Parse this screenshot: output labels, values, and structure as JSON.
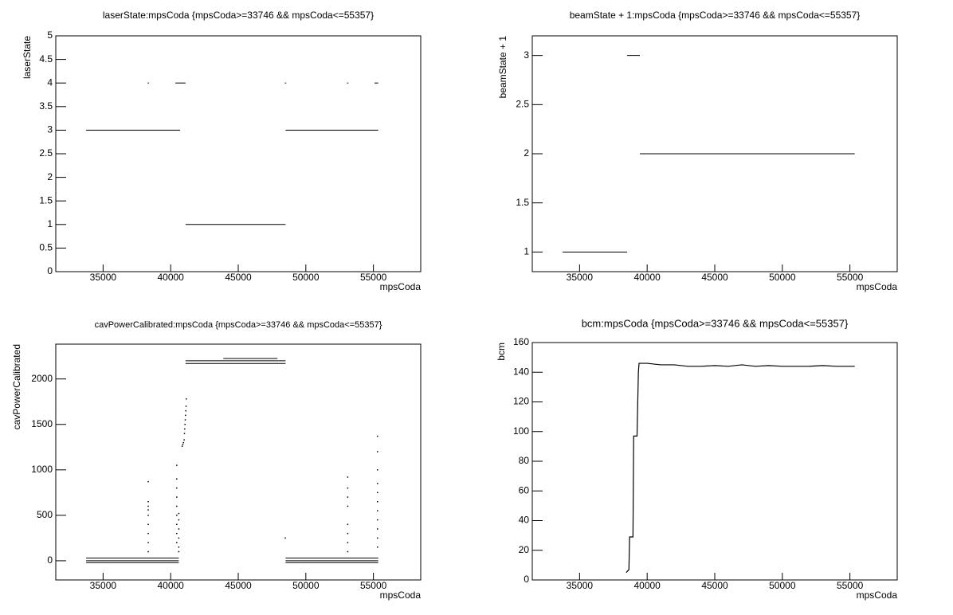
{
  "chart_data": [
    {
      "type": "scatter",
      "title": "laserState:mpsCoda {mpsCoda>=33746 && mpsCoda<=55357}",
      "x_label": "mpsCoda",
      "y_label": "laserState",
      "color": "#000000",
      "xlim": [
        31500,
        58500
      ],
      "xticks": [
        35000,
        40000,
        45000,
        50000,
        55000
      ],
      "ylim": [
        0,
        5
      ],
      "yticks": [
        0,
        0.5,
        1,
        1.5,
        2,
        2.5,
        3,
        3.5,
        4,
        4.5,
        5
      ],
      "segments": [
        {
          "x": [
            33746,
            40700
          ],
          "y": 3
        },
        {
          "x": [
            41100,
            48500
          ],
          "y": 1
        },
        {
          "x": [
            48500,
            55357
          ],
          "y": 3
        },
        {
          "x": [
            38300,
            38400
          ],
          "y": 4
        },
        {
          "x": [
            40350,
            41100
          ],
          "y": 4
        },
        {
          "x": [
            48450,
            48550
          ],
          "y": 4
        },
        {
          "x": [
            53050,
            53150
          ],
          "y": 4
        },
        {
          "x": [
            55080,
            55357
          ],
          "y": 4
        }
      ]
    },
    {
      "type": "scatter",
      "title": "beamState + 1:mpsCoda {mpsCoda>=33746 && mpsCoda<=55357}",
      "x_label": "mpsCoda",
      "y_label": "beamState + 1",
      "color": "#000000",
      "xlim": [
        31500,
        58500
      ],
      "xticks": [
        35000,
        40000,
        45000,
        50000,
        55000
      ],
      "ylim": [
        0.8,
        3.2
      ],
      "yticks": [
        1,
        1.5,
        2,
        2.5,
        3
      ],
      "segments": [
        {
          "x": [
            33746,
            38520
          ],
          "y": 1
        },
        {
          "x": [
            38520,
            39460
          ],
          "y": 3
        },
        {
          "x": [
            39460,
            55357
          ],
          "y": 2
        }
      ]
    },
    {
      "type": "scatter",
      "title": "cavPowerCalibrated:mpsCoda {mpsCoda>=33746 && mpsCoda<=55357}",
      "x_label": "mpsCoda",
      "y_label": "cavPowerCalibrated",
      "color": "#000000",
      "xlim": [
        31500,
        58500
      ],
      "xticks": [
        35000,
        40000,
        45000,
        50000,
        55000
      ],
      "ylim": [
        -211,
        2383
      ],
      "yticks": [
        0,
        500,
        1000,
        1500,
        2000
      ],
      "segments": [
        {
          "x": [
            33746,
            40600
          ],
          "y": 30
        },
        {
          "x": [
            33746,
            40600
          ],
          "y": 0
        },
        {
          "x": [
            33746,
            40600
          ],
          "y": -20
        },
        {
          "x": [
            41100,
            48500
          ],
          "y": 2200
        },
        {
          "x": [
            41100,
            48500
          ],
          "y": 2170
        },
        {
          "x": [
            43900,
            47900
          ],
          "y": 2225
        },
        {
          "x": [
            48500,
            55357
          ],
          "y": 30
        },
        {
          "x": [
            48500,
            55357
          ],
          "y": 0
        },
        {
          "x": [
            48500,
            55357
          ],
          "y": -20
        }
      ],
      "points": {
        "x": [
          38340,
          38340,
          38340,
          38340,
          38340,
          38340,
          38340,
          38340,
          38340,
          40450,
          40450,
          40450,
          40450,
          40450,
          40450,
          40450,
          40450,
          40450,
          40600,
          40600,
          40600,
          40600,
          40600,
          40600,
          40850,
          40900,
          40950,
          41000,
          41020,
          41040,
          41060,
          41080,
          41100,
          41120,
          41140,
          41160,
          48480,
          53100,
          53100,
          53100,
          53100,
          53100,
          53100,
          53100,
          53100,
          55300,
          55300,
          55300,
          55300,
          55300,
          55300,
          55300,
          55300,
          55300,
          55300,
          55300
        ],
        "y": [
          100,
          200,
          300,
          400,
          500,
          560,
          600,
          650,
          870,
          200,
          300,
          400,
          500,
          600,
          700,
          800,
          900,
          1050,
          100,
          150,
          250,
          350,
          450,
          520,
          1260,
          1280,
          1300,
          1330,
          1400,
          1450,
          1500,
          1550,
          1600,
          1650,
          1700,
          1780,
          250,
          100,
          200,
          300,
          400,
          600,
          700,
          800,
          920,
          150,
          250,
          350,
          450,
          550,
          650,
          750,
          850,
          1000,
          1200,
          1370
        ]
      }
    },
    {
      "type": "line",
      "title": "bcm:mpsCoda {mpsCoda>=33746 && mpsCoda<=55357}",
      "x_label": "mpsCoda",
      "y_label": "bcm",
      "color": "#000000",
      "xlim": [
        31500,
        58500
      ],
      "xticks": [
        35000,
        40000,
        45000,
        50000,
        55000
      ],
      "ylim": [
        0,
        160
      ],
      "yticks": [
        0,
        20,
        40,
        60,
        80,
        100,
        120,
        140,
        160
      ],
      "x": [
        38450,
        38650,
        38700,
        38950,
        39000,
        39250,
        39350,
        39400,
        40000,
        41000,
        42000,
        43000,
        44000,
        45000,
        46000,
        47000,
        48000,
        49000,
        50000,
        51000,
        52000,
        53000,
        54000,
        55357
      ],
      "values": [
        5,
        7,
        29,
        29,
        97,
        97,
        140,
        146,
        146,
        145,
        145,
        144,
        144,
        144.5,
        144,
        145,
        144,
        144.5,
        144,
        144,
        144,
        144.5,
        144,
        144
      ]
    }
  ]
}
